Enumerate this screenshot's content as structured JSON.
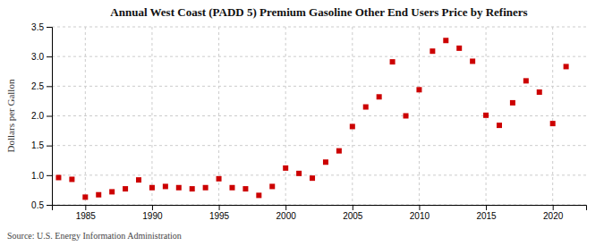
{
  "chart_data": {
    "type": "scatter",
    "title": "Annual West Coast (PADD 5) Premium Gasoline Other End Users Price by Refiners",
    "ylabel": "Dollars per Gallon",
    "source": "Source: U.S. Energy Information Administration",
    "x": [
      1983,
      1984,
      1985,
      1986,
      1987,
      1988,
      1989,
      1990,
      1991,
      1992,
      1993,
      1994,
      1995,
      1996,
      1997,
      1998,
      1999,
      2000,
      2001,
      2002,
      2003,
      2004,
      2005,
      2006,
      2007,
      2008,
      2009,
      2010,
      2011,
      2012,
      2013,
      2014,
      2015,
      2016,
      2017,
      2018,
      2019,
      2020,
      2021
    ],
    "values": [
      0.96,
      0.93,
      0.63,
      0.67,
      0.72,
      0.77,
      0.92,
      0.79,
      0.81,
      0.79,
      0.77,
      0.79,
      0.94,
      0.79,
      0.77,
      0.66,
      0.81,
      1.12,
      1.03,
      0.95,
      1.22,
      1.41,
      1.82,
      2.15,
      2.32,
      2.91,
      2.0,
      2.44,
      3.09,
      3.27,
      3.14,
      2.92,
      2.01,
      1.84,
      2.22,
      2.59,
      2.4,
      1.87,
      2.83
    ],
    "color": "#cc0000",
    "marker": "square",
    "xlim": [
      1982.5,
      2022.5
    ],
    "xticks": [
      1985,
      1990,
      1995,
      2000,
      2005,
      2010,
      2015,
      2020
    ],
    "ylim": [
      0.5,
      3.5
    ],
    "yticks": [
      0.5,
      {
        "value": 1.0,
        "label": "1.0"
      },
      1.5,
      {
        "value": 2.0,
        "label": "2.0"
      },
      2.5,
      {
        "value": 3.0,
        "label": "3.0"
      },
      3.5
    ],
    "grid": true
  }
}
